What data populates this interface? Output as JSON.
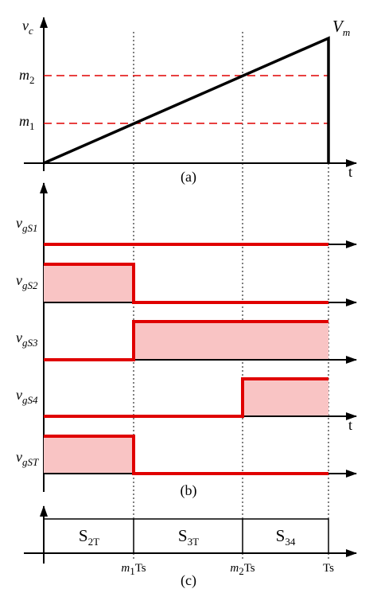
{
  "panel_a": {
    "y_label": {
      "main": "v",
      "sub": "c"
    },
    "peak_label": {
      "main": "V",
      "sub": "m"
    },
    "levels": [
      {
        "main": "m",
        "sub": "2"
      },
      {
        "main": "m",
        "sub": "1"
      }
    ],
    "x_label": "t",
    "caption": "(a)"
  },
  "panel_b": {
    "signals": [
      {
        "main": "v",
        "sub": "gS1"
      },
      {
        "main": "v",
        "sub": "gS2"
      },
      {
        "main": "v",
        "sub": "gS3"
      },
      {
        "main": "v",
        "sub": "gS4"
      },
      {
        "main": "v",
        "sub": "gST"
      }
    ],
    "x_label": "t",
    "caption": "(b)"
  },
  "panel_c": {
    "segments": [
      {
        "main": "S",
        "sub": "2T"
      },
      {
        "main": "S",
        "sub": "3T"
      },
      {
        "main": "S",
        "sub": "34"
      }
    ],
    "ticks": [
      {
        "main": "m",
        "sub": "1",
        "rest": "Ts"
      },
      {
        "main": "m",
        "sub": "2",
        "rest": "Ts"
      },
      {
        "main": "Ts"
      }
    ],
    "caption": "(c)"
  }
}
